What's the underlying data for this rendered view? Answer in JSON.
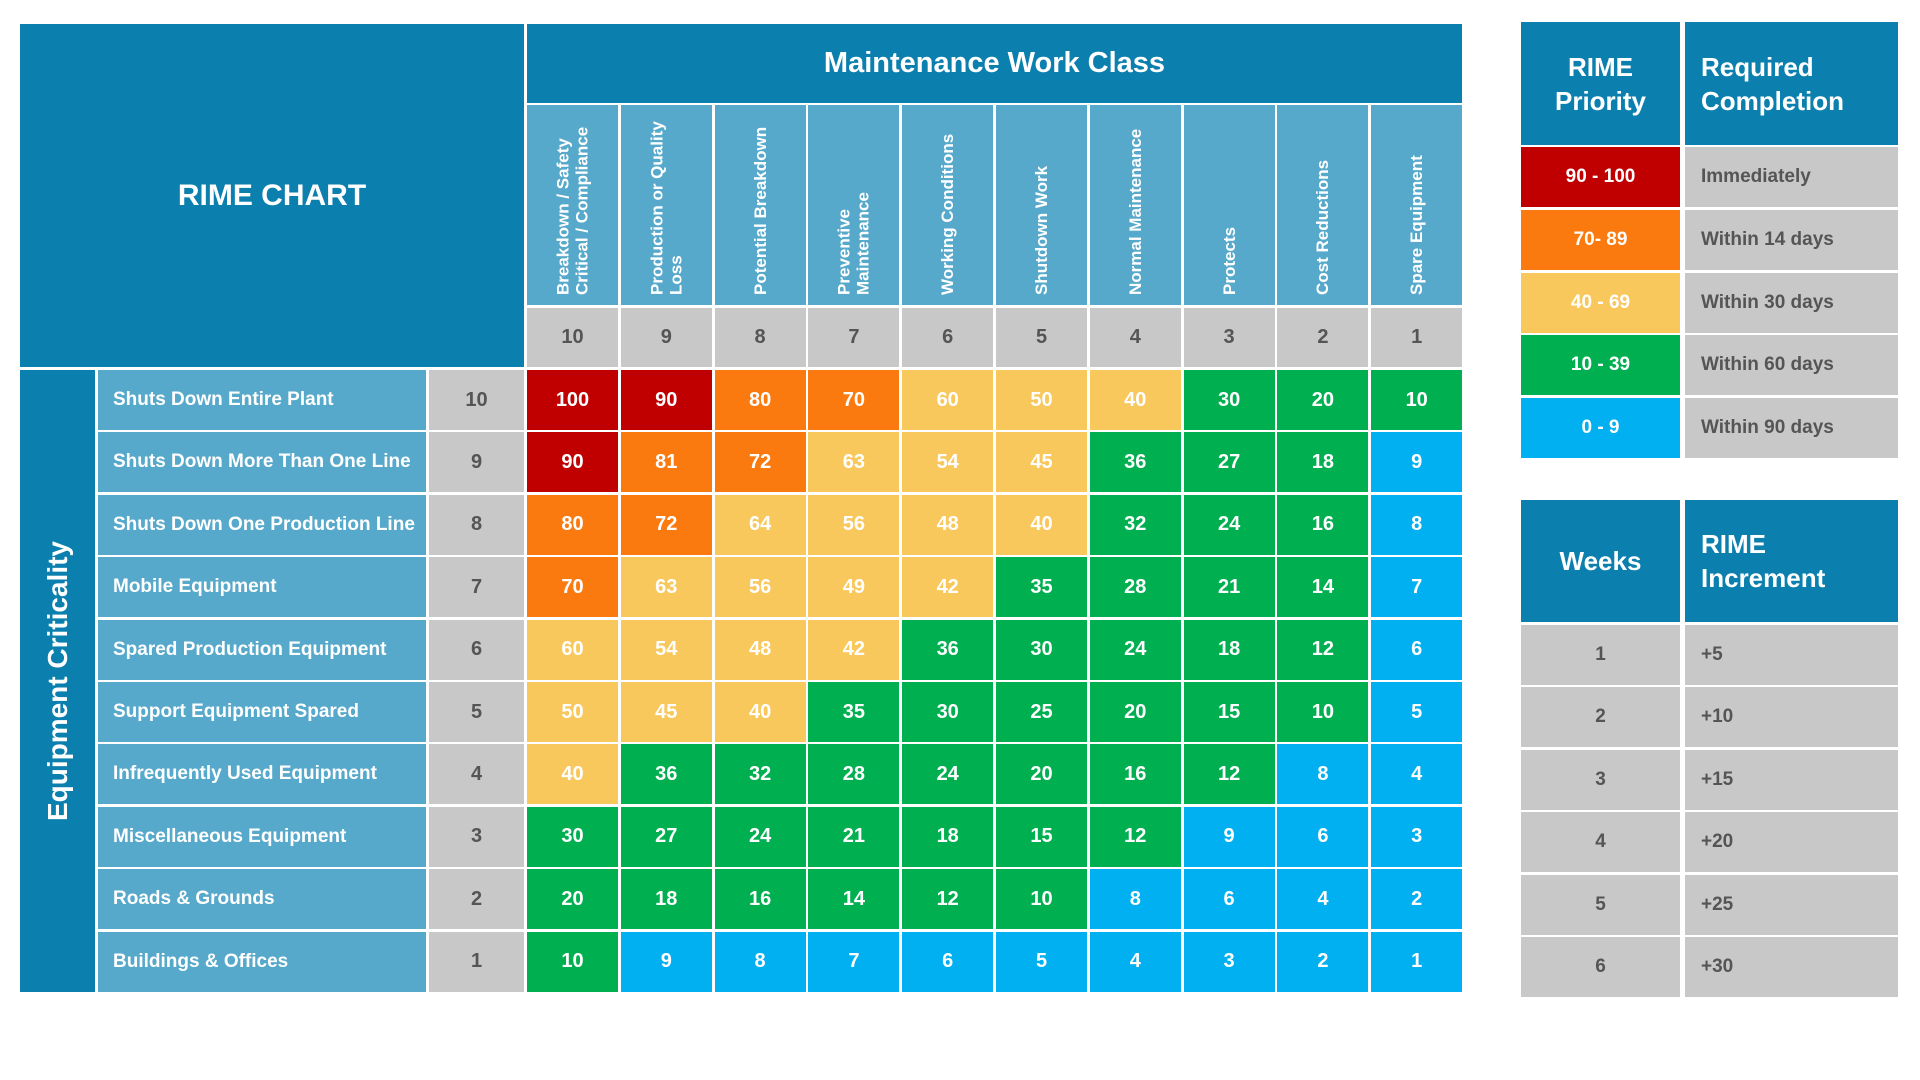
{
  "title": "RIME CHART",
  "column_group": "Maintenance Work Class",
  "row_group": "Equipment Criticality",
  "columns": [
    {
      "label": "Breakdown / Safety Critical / Compliance",
      "weight": 10
    },
    {
      "label": "Production or Quality Loss",
      "weight": 9
    },
    {
      "label": "Potential Breakdown",
      "weight": 8
    },
    {
      "label": "Preventive Maintenance",
      "weight": 7
    },
    {
      "label": "Working Conditions",
      "weight": 6
    },
    {
      "label": "Shutdown Work",
      "weight": 5
    },
    {
      "label": "Normal Maintenance",
      "weight": 4
    },
    {
      "label": "Protects",
      "weight": 3
    },
    {
      "label": "Cost Reductions",
      "weight": 2
    },
    {
      "label": "Spare Equipment",
      "weight": 1
    }
  ],
  "rows": [
    {
      "label": "Shuts Down Entire Plant",
      "weight": 10,
      "values": [
        100,
        90,
        80,
        70,
        60,
        50,
        40,
        30,
        20,
        10
      ]
    },
    {
      "label": "Shuts Down  More Than One Line",
      "weight": 9,
      "values": [
        90,
        81,
        72,
        63,
        54,
        45,
        36,
        27,
        18,
        9
      ]
    },
    {
      "label": "Shuts Down One Production Line",
      "weight": 8,
      "values": [
        80,
        72,
        64,
        56,
        48,
        40,
        32,
        24,
        16,
        8
      ]
    },
    {
      "label": "Mobile Equipment",
      "weight": 7,
      "values": [
        70,
        63,
        56,
        49,
        42,
        35,
        28,
        21,
        14,
        7
      ]
    },
    {
      "label": "Spared Production Equipment",
      "weight": 6,
      "values": [
        60,
        54,
        48,
        42,
        36,
        30,
        24,
        18,
        12,
        6
      ]
    },
    {
      "label": "Support Equipment Spared",
      "weight": 5,
      "values": [
        50,
        45,
        40,
        35,
        30,
        25,
        20,
        15,
        10,
        5
      ]
    },
    {
      "label": "Infrequently Used Equipment",
      "weight": 4,
      "values": [
        40,
        36,
        32,
        28,
        24,
        20,
        16,
        12,
        8,
        4
      ]
    },
    {
      "label": "Miscellaneous Equipment",
      "weight": 3,
      "values": [
        30,
        27,
        24,
        21,
        18,
        15,
        12,
        9,
        6,
        3
      ]
    },
    {
      "label": "Roads & Grounds",
      "weight": 2,
      "values": [
        20,
        18,
        16,
        14,
        12,
        10,
        8,
        6,
        4,
        2
      ]
    },
    {
      "label": "Buildings & Offices",
      "weight": 1,
      "values": [
        10,
        9,
        8,
        7,
        6,
        5,
        4,
        3,
        2,
        1
      ]
    }
  ],
  "priority_table": {
    "headers": [
      "RIME Priority",
      "Required Completion"
    ],
    "rows": [
      {
        "range": "90 - 100",
        "completion": "Immediately",
        "color": "#c00000"
      },
      {
        "range": "70- 89",
        "completion": "Within 14 days",
        "color": "#fb7a10"
      },
      {
        "range": "40 - 69",
        "completion": "Within 30 days",
        "color": "#f9c85c"
      },
      {
        "range": "10 - 39",
        "completion": "Within 60 days",
        "color": "#00b050"
      },
      {
        "range": "0 - 9",
        "completion": "Within 90 days",
        "color": "#00b0f0"
      }
    ]
  },
  "increment_table": {
    "headers": [
      "Weeks",
      "RIME Increment"
    ],
    "rows": [
      {
        "weeks": 1,
        "increment": "+5"
      },
      {
        "weeks": 2,
        "increment": "+10"
      },
      {
        "weeks": 3,
        "increment": "+15"
      },
      {
        "weeks": 4,
        "increment": "+20"
      },
      {
        "weeks": 5,
        "increment": "+25"
      },
      {
        "weeks": 6,
        "increment": "+30"
      }
    ]
  }
}
